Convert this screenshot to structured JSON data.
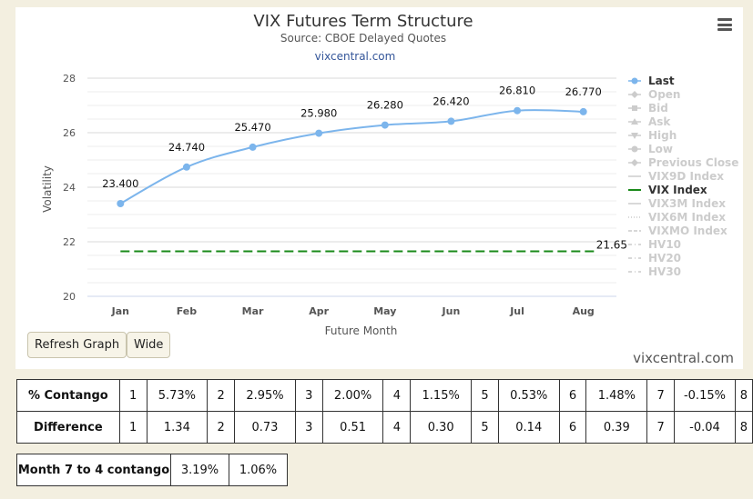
{
  "chart_data": {
    "type": "line",
    "title": "VIX Futures Term Structure",
    "subtitle": "Source: CBOE Delayed Quotes",
    "credit": "vixcentral.com",
    "xlabel": "Future Month",
    "ylabel": "Volatility",
    "categories": [
      "Jan",
      "Feb",
      "Mar",
      "Apr",
      "May",
      "Jun",
      "Jul",
      "Aug"
    ],
    "ylim": [
      20,
      28
    ],
    "yticks": [
      "20",
      "22",
      "24",
      "26",
      "28"
    ],
    "series": [
      {
        "name": "Last",
        "values": [
          23.4,
          24.74,
          25.47,
          25.98,
          26.28,
          26.42,
          26.81,
          26.77
        ],
        "labels": [
          "23.400",
          "24.740",
          "25.470",
          "25.980",
          "26.280",
          "26.420",
          "26.810",
          "26.770"
        ],
        "color": "#7cb5ec"
      },
      {
        "name": "VIX Index",
        "values": [
          21.65,
          21.65,
          21.65,
          21.65,
          21.65,
          21.65,
          21.65,
          21.65
        ],
        "end_label": "21.65",
        "color": "#1a8a1a",
        "dashed": true
      }
    ],
    "legend": {
      "placement": "right",
      "items": [
        {
          "name": "Last",
          "active": true,
          "marker": "circle"
        },
        {
          "name": "Open",
          "active": false,
          "marker": "diamond"
        },
        {
          "name": "Bid",
          "active": false,
          "marker": "square"
        },
        {
          "name": "Ask",
          "active": false,
          "marker": "triangle"
        },
        {
          "name": "High",
          "active": false,
          "marker": "triangle-down"
        },
        {
          "name": "Low",
          "active": false,
          "marker": "circle"
        },
        {
          "name": "Previous Close",
          "active": false,
          "marker": "diamond"
        },
        {
          "name": "VIX9D Index",
          "active": false,
          "marker": "line"
        },
        {
          "name": "VIX Index",
          "active": true,
          "marker": "line"
        },
        {
          "name": "VIX3M Index",
          "active": false,
          "marker": "line"
        },
        {
          "name": "VIX6M Index",
          "active": false,
          "marker": "dotted"
        },
        {
          "name": "VIXMO Index",
          "active": false,
          "marker": "dashed"
        },
        {
          "name": "HV10",
          "active": false,
          "marker": "dashdot"
        },
        {
          "name": "HV20",
          "active": false,
          "marker": "dashdot"
        },
        {
          "name": "HV30",
          "active": false,
          "marker": "dashdot"
        }
      ]
    },
    "grid": true
  },
  "buttons": {
    "refresh": "Refresh Graph",
    "wide": "Wide"
  },
  "watermark": "vixcentral.com",
  "contango_table": {
    "rows": [
      {
        "label": "% Contango",
        "cells": [
          "1",
          "5.73%",
          "2",
          "2.95%",
          "3",
          "2.00%",
          "4",
          "1.15%",
          "5",
          "0.53%",
          "6",
          "1.48%",
          "7",
          "-0.15%",
          "8"
        ]
      },
      {
        "label": "Difference",
        "cells": [
          "1",
          "1.34",
          "2",
          "0.73",
          "3",
          "0.51",
          "4",
          "0.30",
          "5",
          "0.14",
          "6",
          "0.39",
          "7",
          "-0.04",
          "8"
        ]
      }
    ]
  },
  "month_table": {
    "label": "Month 7 to 4 contango",
    "values": [
      "3.19%",
      "1.06%"
    ]
  }
}
